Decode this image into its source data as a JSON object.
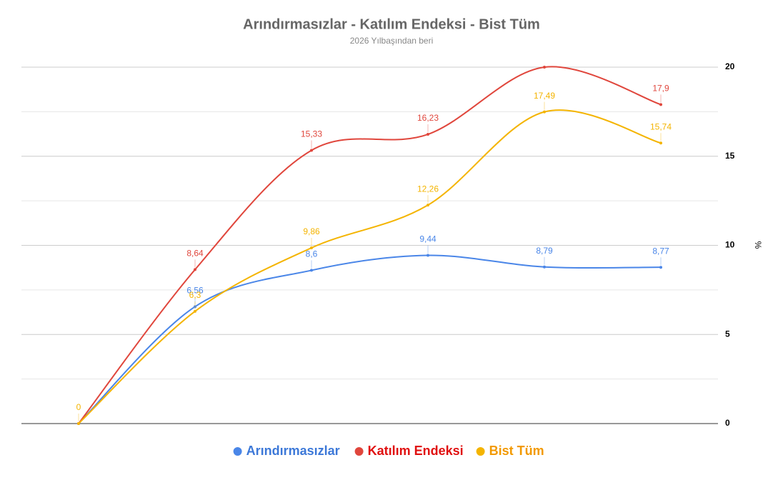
{
  "chart_data": {
    "type": "line",
    "title": "Arındırmasızlar - Katılım Endeksi - Bist Tüm",
    "subtitle": "2026 Yılbaşından beri",
    "y_axis_label": "%",
    "y_axis_position": "right",
    "categories": [
      null,
      null,
      null,
      null,
      null,
      null
    ],
    "ylim": [
      0,
      20
    ],
    "yticks": [
      0,
      5,
      10,
      15,
      20
    ],
    "minor_yticks": [
      2.5,
      7.5,
      12.5,
      17.5
    ],
    "grid": true,
    "smooth": true,
    "legend": "bottom",
    "series": [
      {
        "name": "Arındırmasızlar",
        "color": "#4a86e8",
        "legend_color": "#3c78d8",
        "values": [
          0,
          6.56,
          8.6,
          9.44,
          8.79,
          8.77
        ],
        "value_labels": [
          null,
          "6,56",
          "8,6",
          "9,44",
          "8,79",
          "8,77"
        ]
      },
      {
        "name": "Katılım Endeksi",
        "color": "#e0463c",
        "legend_color": "#e01010",
        "values": [
          0,
          8.64,
          15.33,
          16.23,
          20,
          17.9
        ],
        "value_labels": [
          null,
          "8,64",
          "15,33",
          "16,23",
          null,
          "17,9"
        ]
      },
      {
        "name": "Bist Tüm",
        "color": "#f4b400",
        "legend_color": "#f29900",
        "values": [
          0,
          6.3,
          9.86,
          12.26,
          17.49,
          15.74
        ],
        "value_labels": [
          "0",
          "6,3",
          "9,86",
          "12,26",
          "17,49",
          "15,74"
        ]
      }
    ]
  }
}
